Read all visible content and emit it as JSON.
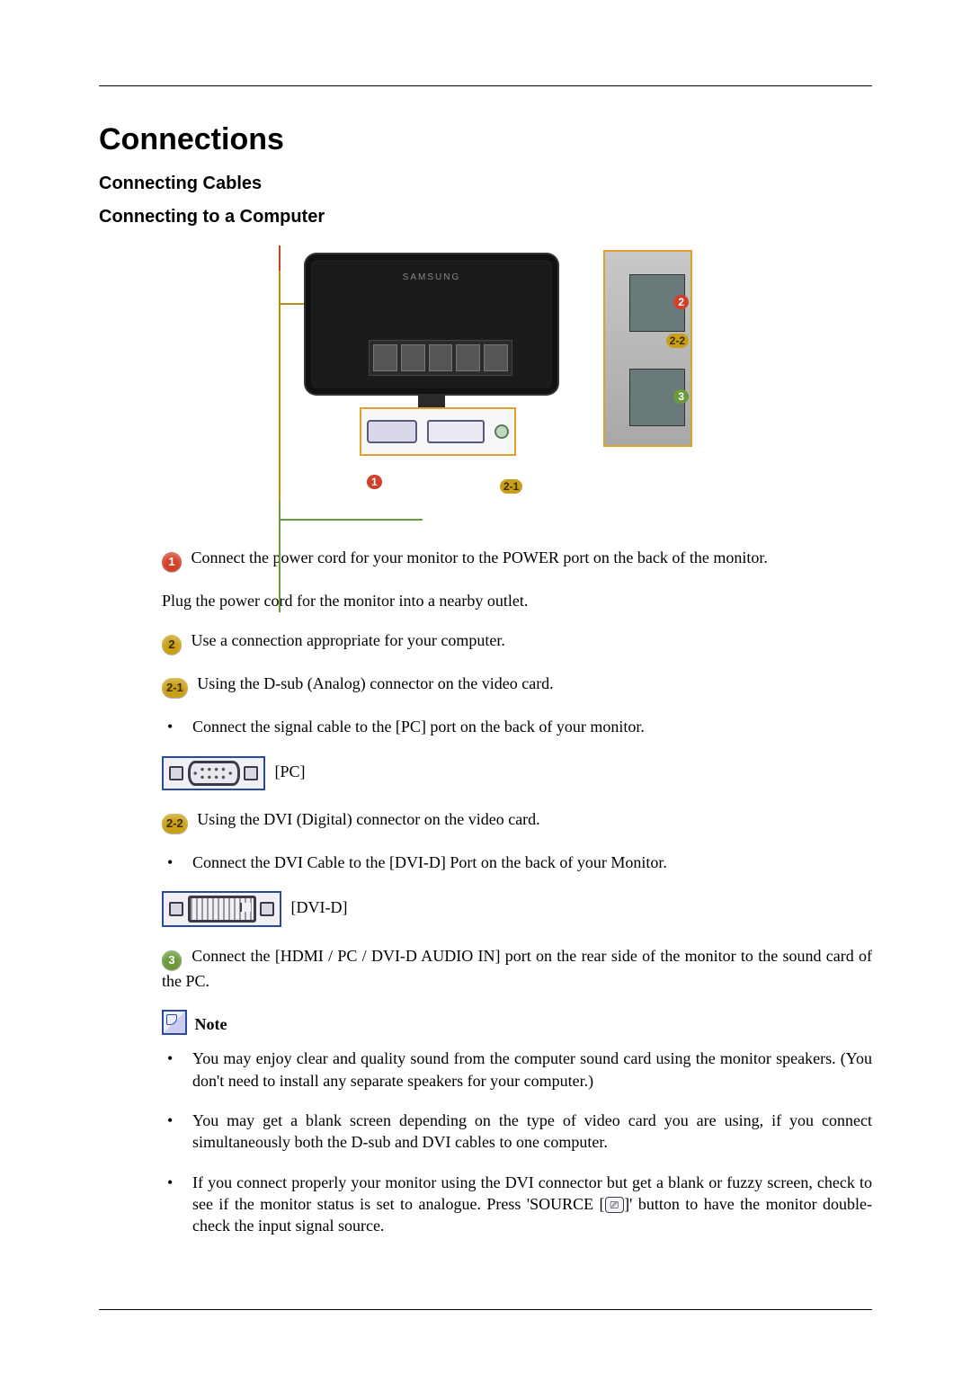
{
  "page": {
    "title": "Connections",
    "sub1": "Connecting Cables",
    "sub2": "Connecting to a Computer"
  },
  "badges": {
    "n1": "1",
    "n2": "2",
    "n21": "2-1",
    "n22": "2-2",
    "n3": "3"
  },
  "colors": {
    "red": "#d04028",
    "yellow": "#c8a018",
    "green": "#6a9a3a",
    "accent_border": "#e0a030",
    "port_border": "#2a4aa0"
  },
  "diagram": {
    "monitor_brand": "SAMSUNG",
    "labels": {
      "l1": "1",
      "l2": "2",
      "l21": "2-1",
      "l22": "2-2",
      "l3": "3"
    }
  },
  "text": {
    "p1": "Connect the power cord for your monitor to the POWER port on the back of the monitor.",
    "p1b": "Plug the power cord for the monitor into a nearby outlet.",
    "p2": "Use a connection appropriate for your computer.",
    "p21": "Using the D-sub (Analog) connector on the video card.",
    "p21_bullet": "Connect the signal cable to the [PC] port on the back of your monitor.",
    "port_pc_label": "[PC]",
    "p22": "Using the DVI (Digital) connector on the video card.",
    "p22_bullet": "Connect the DVI Cable to the [DVI-D] Port on the back of your Monitor.",
    "port_dvi_label": "[DVI-D]",
    "p3": "Connect the [HDMI / PC / DVI-D AUDIO IN] port on the rear side of the monitor to the sound card of the PC.",
    "note_label": "Note",
    "note1": "You may enjoy clear and quality sound from the computer sound card using the monitor speakers. (You don't need to install any separate speakers for your computer.)",
    "note2": "You may get a blank screen depending on the type of video card you are using, if you connect simultaneously both the D-sub and DVI cables to one computer.",
    "note3_a": "If you connect properly your monitor using the DVI connector but get a blank or fuzzy screen, check to see if the monitor status is set to analogue. Press 'SOURCE [",
    "note3_icon": "⎚",
    "note3_b": "]' button to have the monitor double-check the input signal source."
  }
}
